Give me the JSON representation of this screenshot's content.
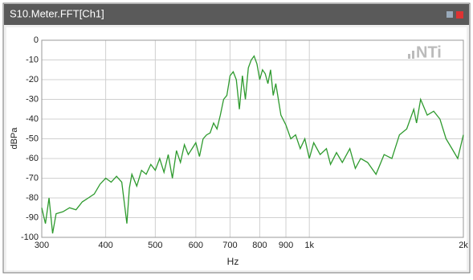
{
  "chart_data": {
    "type": "line",
    "title": "S10.Meter.FFT[Ch1]",
    "watermark": "NTi",
    "x_label": "Hz",
    "y_label": "dBPa",
    "log_x": true,
    "grid": true,
    "x": [
      300,
      305,
      310,
      315,
      320,
      330,
      340,
      350,
      360,
      370,
      380,
      390,
      400,
      410,
      420,
      430,
      440,
      445,
      450,
      460,
      470,
      480,
      490,
      500,
      510,
      520,
      530,
      540,
      550,
      560,
      570,
      580,
      590,
      600,
      610,
      620,
      630,
      640,
      650,
      660,
      670,
      680,
      690,
      700,
      710,
      720,
      730,
      740,
      750,
      760,
      770,
      780,
      790,
      800,
      810,
      820,
      830,
      840,
      850,
      860,
      870,
      880,
      900,
      920,
      940,
      960,
      980,
      1000,
      1020,
      1050,
      1080,
      1100,
      1130,
      1160,
      1200,
      1230,
      1260,
      1300,
      1350,
      1400,
      1450,
      1500,
      1550,
      1600,
      1620,
      1650,
      1700,
      1750,
      1800,
      1850,
      1900,
      1950,
      2000
    ],
    "series": [
      {
        "name": "Ch1",
        "color": "#2e9a2e",
        "values": [
          -85,
          -93,
          -80,
          -98,
          -88,
          -87,
          -85,
          -86,
          -82,
          -80,
          -78,
          -73,
          -70,
          -72,
          -69,
          -72,
          -93,
          -75,
          -68,
          -74,
          -66,
          -68,
          -63,
          -66,
          -60,
          -67,
          -58,
          -70,
          -56,
          -62,
          -53,
          -58,
          -55,
          -52,
          -59,
          -50,
          -48,
          -47,
          -42,
          -45,
          -38,
          -30,
          -28,
          -18,
          -16,
          -20,
          -35,
          -18,
          -30,
          -14,
          -10,
          -8,
          -12,
          -20,
          -15,
          -17,
          -22,
          -15,
          -28,
          -22,
          -30,
          -38,
          -43,
          -50,
          -48,
          -55,
          -50,
          -60,
          -52,
          -58,
          -55,
          -63,
          -57,
          -62,
          -55,
          -65,
          -60,
          -62,
          -68,
          -58,
          -60,
          -48,
          -45,
          -35,
          -42,
          -30,
          -38,
          -36,
          -40,
          -50,
          -55,
          -60,
          -48
        ]
      }
    ],
    "xlim": [
      300,
      2000
    ],
    "xticks": [
      300,
      400,
      500,
      600,
      700,
      800,
      900,
      {
        "value": 1000,
        "label": "1k"
      },
      {
        "value": 2000,
        "label": "2k"
      }
    ],
    "ylim": [
      -100,
      0
    ],
    "yticks": [
      -100,
      -90,
      -80,
      -70,
      -60,
      -50,
      -40,
      -30,
      -20,
      -10,
      0
    ]
  }
}
